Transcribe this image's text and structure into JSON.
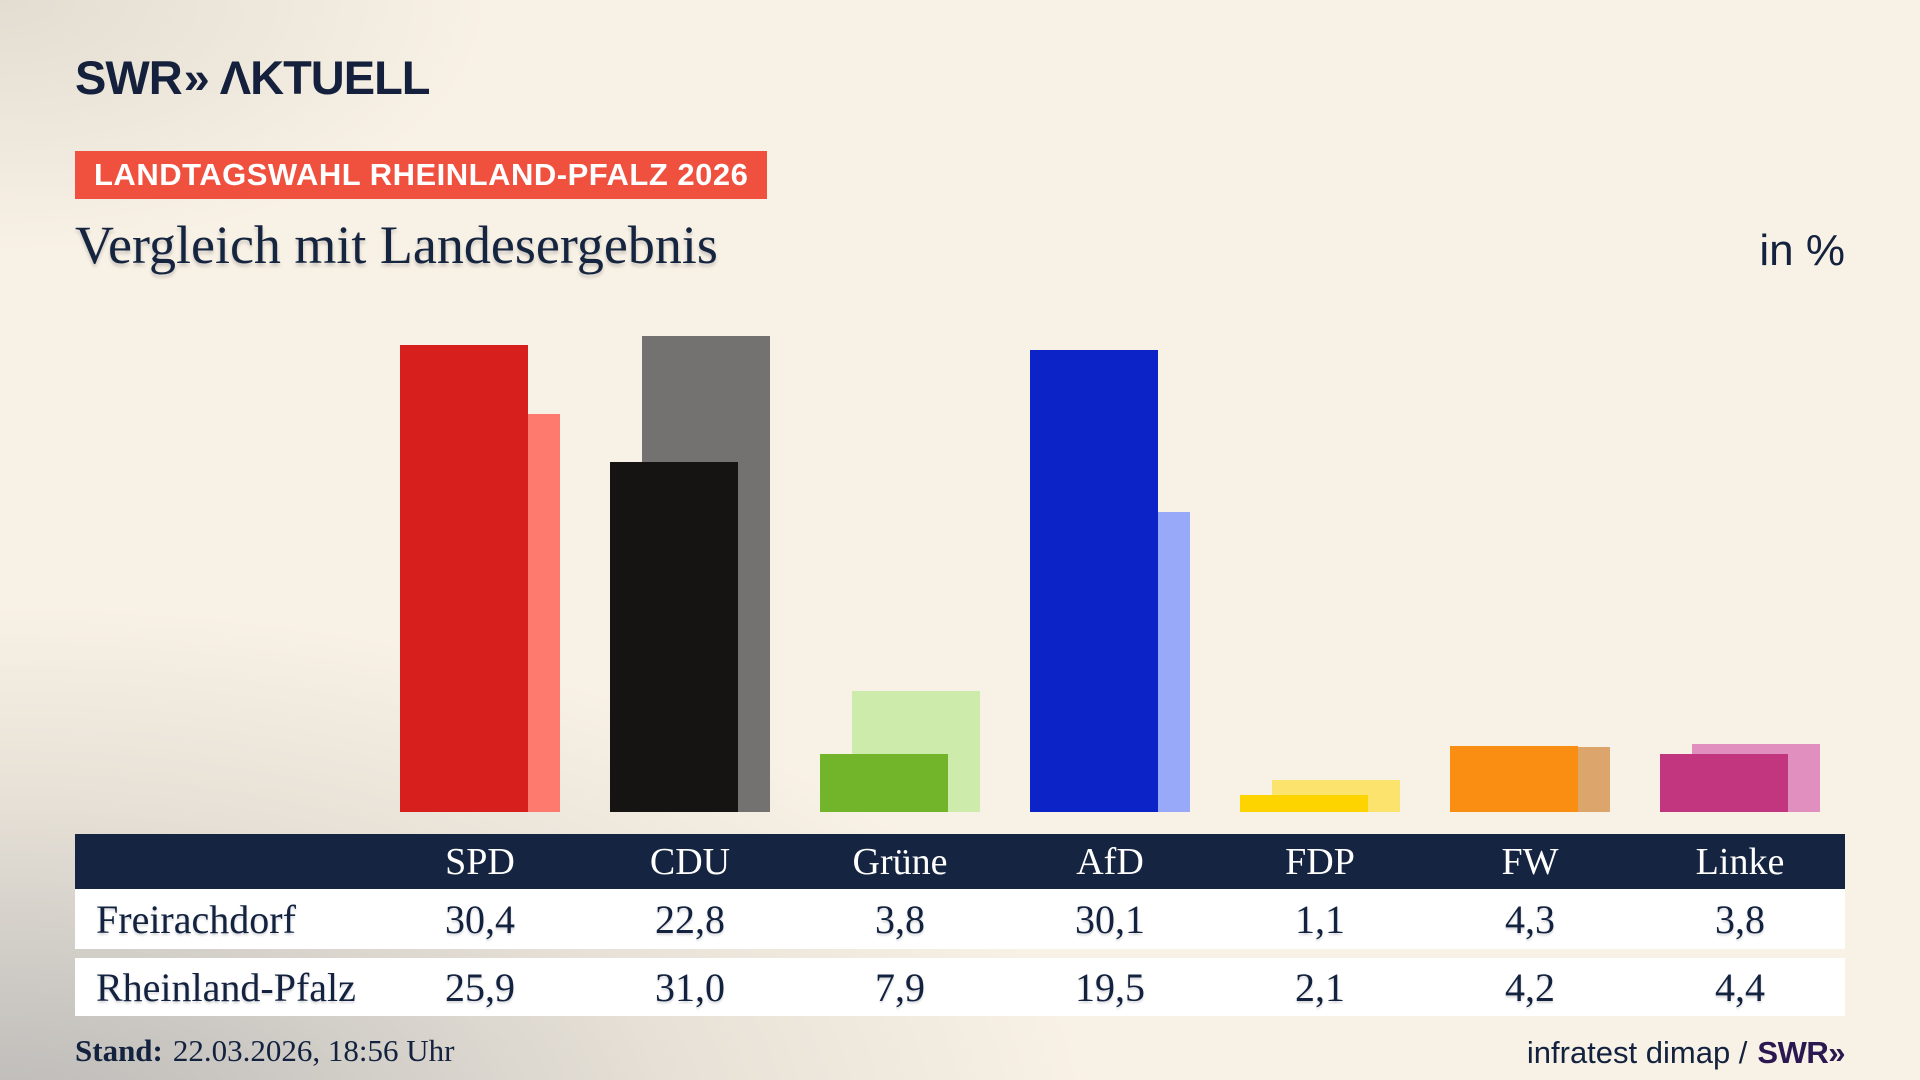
{
  "header": {
    "brand": {
      "swr": "SWR",
      "chevrons": "»",
      "aktuell": "ΛKTUELL"
    },
    "badge": "LANDTAGSWAHL RHEINLAND-PFALZ 2026",
    "title": "Vergleich mit Landesergebnis",
    "unit_label": "in %"
  },
  "chart_data": {
    "type": "bar",
    "title": "Vergleich mit Landesergebnis",
    "unit": "in %",
    "axes_visible": false,
    "legend_position": "table-below",
    "categories": [
      "SPD",
      "CDU",
      "Grüne",
      "AfD",
      "FDP",
      "FW",
      "Linke"
    ],
    "series": [
      {
        "name": "Freirachdorf",
        "values": [
          30.4,
          22.8,
          3.8,
          30.1,
          1.1,
          4.3,
          3.8
        ],
        "colors": [
          "#d7201d",
          "#161412",
          "#72b42a",
          "#0c23c8",
          "#fdd400",
          "#f98e13",
          "#c1367f"
        ]
      },
      {
        "name": "Rheinland-Pfalz",
        "values": [
          25.9,
          31.0,
          7.9,
          19.5,
          2.1,
          4.2,
          4.4
        ],
        "colors": [
          "#fe7a6e",
          "#747270",
          "#cdecab",
          "#97a9f8",
          "#fbe36e",
          "#dba56b",
          "#e08fbe"
        ]
      }
    ]
  },
  "table": {
    "header_columns": [
      "SPD",
      "CDU",
      "Grüne",
      "AfD",
      "FDP",
      "FW",
      "Linke"
    ],
    "rows": [
      {
        "label": "Freirachdorf",
        "values": [
          "30,4",
          "22,8",
          "3,8",
          "30,1",
          "1,1",
          "4,3",
          "3,8"
        ]
      },
      {
        "label": "Rheinland-Pfalz",
        "values": [
          "25,9",
          "31,0",
          "7,9",
          "19,5",
          "2,1",
          "4,2",
          "4,4"
        ]
      }
    ]
  },
  "footer": {
    "stand_label": "Stand:",
    "stand_value": "22.03.2026, 18:56 Uhr",
    "source": "infratest dimap /",
    "source_brand": "SWR»"
  },
  "colors": {
    "background": "#f8f1e5",
    "badge_red": "#f0513f",
    "navy": "#152440",
    "footer_brand_purple": "#2a1850"
  }
}
